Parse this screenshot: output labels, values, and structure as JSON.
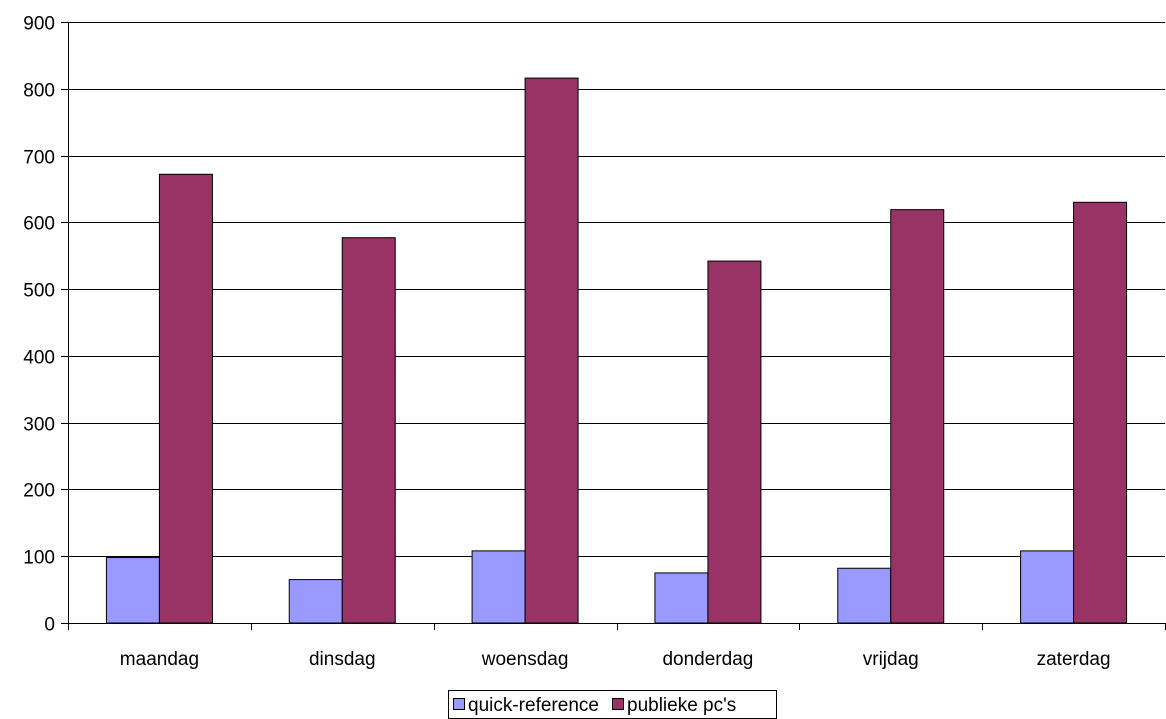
{
  "chart_data": {
    "type": "bar",
    "title": "",
    "xlabel": "",
    "ylabel": "",
    "categories": [
      "maandag",
      "dinsdag",
      "woensdag",
      "donderdag",
      "vrijdag",
      "zaterdag"
    ],
    "series": [
      {
        "name": "quick-reference",
        "color": "#9999ff",
        "values": [
          98,
          65,
          108,
          75,
          82,
          108
        ]
      },
      {
        "name": "publieke pc's",
        "color": "#993366",
        "values": [
          672,
          577,
          816,
          542,
          619,
          630
        ]
      }
    ],
    "ylim": [
      0,
      900
    ],
    "yticks": [
      0,
      100,
      200,
      300,
      400,
      500,
      600,
      700,
      800,
      900
    ],
    "grid": true,
    "legend_position": "bottom"
  }
}
